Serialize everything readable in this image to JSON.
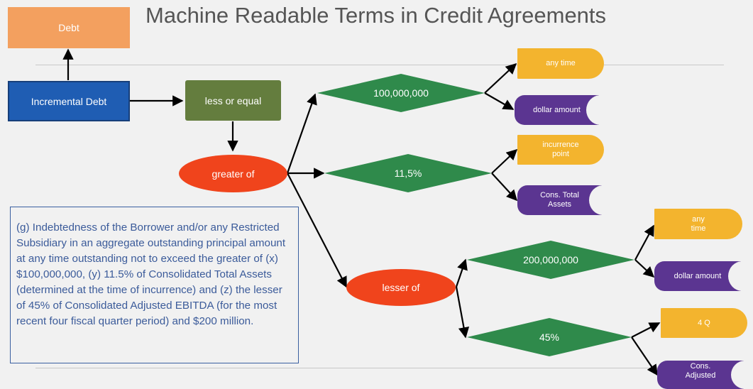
{
  "title": "Machine Readable Terms in Credit Agreements",
  "nodes": {
    "debt": "Debt",
    "incremental_debt": "Incremental Debt",
    "less_or_equal": "less or equal",
    "greater_of": "greater of",
    "lesser_of": "lesser of",
    "amount_100m": "100,000,000",
    "pct_11_5": "11,5%",
    "amount_200m": "200,000,000",
    "pct_45": "45%",
    "any_time_1": "any time",
    "dollar_amount_1": "dollar amount",
    "incurrence_point": "incurrence point",
    "cons_total_assets": "Cons. Total Assets",
    "any_time_2": "any time",
    "dollar_amount_2": "dollar amount",
    "four_q": "4 Q",
    "cons_adjusted": "Cons. Adjusted"
  },
  "clause_text": "(g) Indebtedness of the Borrower and/or any Restricted Subsidiary in an aggregate outstanding principal amount at any time outstanding not to exceed the greater of (x) $100,000,000, (y) 11.5% of Consolidated Total Assets  (determined at the time of incurrence) and (z) the lesser of 45% of Consolidated Adjusted EBITDA  (for the most recent four fiscal quarter period) and $200 million.",
  "colors": {
    "orange": "#f3a05f",
    "blue": "#1f5db3",
    "olive": "#647d3e",
    "red": "#f0441c",
    "green": "#2f8a4b",
    "yellow": "#f3b42e",
    "purple": "#5b3591",
    "text_blue": "#3b5b9a"
  }
}
